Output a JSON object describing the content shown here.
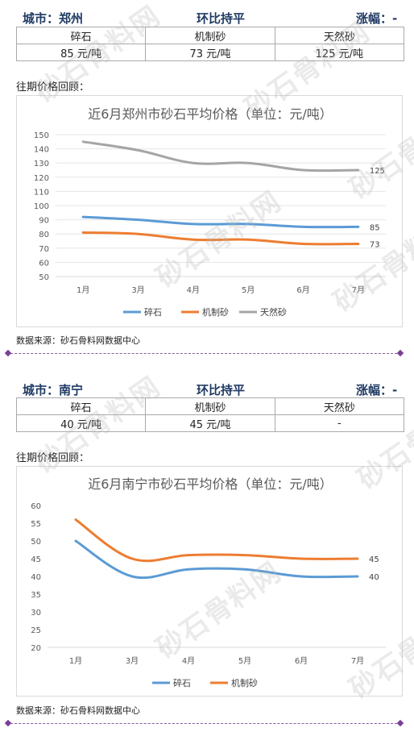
{
  "sections": [
    {
      "header": {
        "city": "城市：郑州",
        "trend": "环比持平",
        "change": "涨幅：-"
      },
      "table": {
        "headers": [
          "碎石",
          "机制砂",
          "天然砂"
        ],
        "values": [
          "85 元/吨",
          "73 元/吨",
          "125 元/吨"
        ]
      },
      "review_label": "往期价格回顾：",
      "source": "数据来源：砂石骨料网数据中心"
    },
    {
      "header": {
        "city": "城市：南宁",
        "trend": "环比持平",
        "change": "涨幅：-"
      },
      "table": {
        "headers": [
          "碎石",
          "机制砂",
          "天然砂"
        ],
        "values": [
          "40 元/吨",
          "45 元/吨",
          "-"
        ]
      },
      "review_label": "往期价格回顾：",
      "source": "数据来源：砂石骨料网数据中心"
    }
  ],
  "watermark": {
    "text": "砂石骨料网",
    "url": "www.cssglw.com"
  },
  "chart_data": [
    {
      "type": "line",
      "title": "近6月郑州市砂石平均价格（单位：元/吨）",
      "categories": [
        "1月",
        "3月",
        "4月",
        "5月",
        "6月",
        "7月"
      ],
      "ylim": [
        50,
        150
      ],
      "yticks": [
        50,
        60,
        70,
        80,
        90,
        100,
        110,
        120,
        130,
        140,
        150
      ],
      "grid": true,
      "legend": "bottom",
      "series": [
        {
          "name": "碎石",
          "color": "#5b9bd5",
          "values": [
            92,
            90,
            87,
            87,
            85,
            85
          ],
          "end_label": "85"
        },
        {
          "name": "机制砂",
          "color": "#ed7d31",
          "values": [
            81,
            80,
            76,
            76,
            73,
            73
          ],
          "end_label": "73"
        },
        {
          "name": "天然砂",
          "color": "#a5a5a5",
          "values": [
            145,
            139,
            130,
            130,
            125,
            125
          ],
          "end_label": "125"
        }
      ]
    },
    {
      "type": "line",
      "title": "近6月南宁市砂石平均价格（单位：元/吨）",
      "categories": [
        "1月",
        "3月",
        "4月",
        "5月",
        "6月",
        "7月"
      ],
      "ylim": [
        20,
        60
      ],
      "yticks": [
        20,
        25,
        30,
        35,
        40,
        45,
        50,
        55,
        60
      ],
      "grid": false,
      "legend": "bottom",
      "series": [
        {
          "name": "碎石",
          "color": "#5b9bd5",
          "values": [
            50,
            40,
            42,
            42,
            40,
            40
          ],
          "end_label": "40"
        },
        {
          "name": "机制砂",
          "color": "#ed7d31",
          "values": [
            56,
            45,
            46,
            46,
            45,
            45
          ],
          "end_label": "45"
        }
      ]
    }
  ]
}
